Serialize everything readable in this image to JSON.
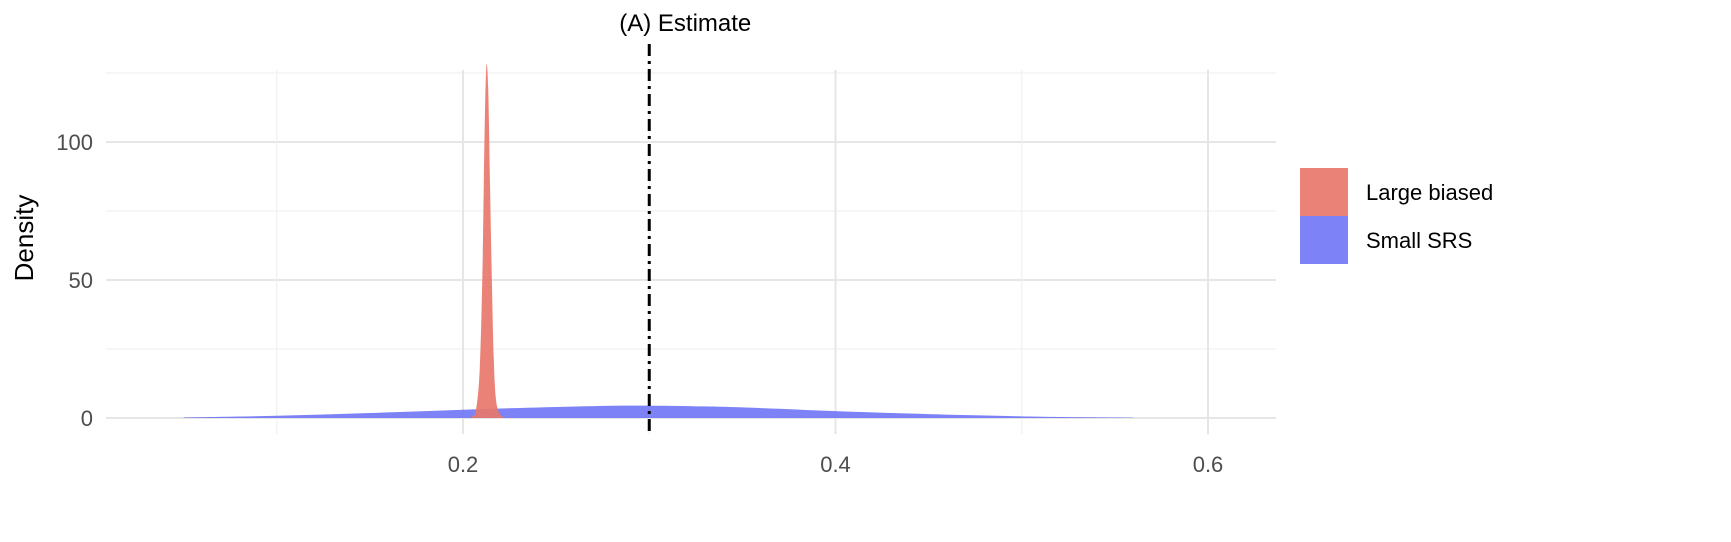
{
  "chart_data": {
    "type": "area",
    "title": "",
    "annotation": "(A) Estimate",
    "xlabel": "",
    "ylabel": "Density",
    "xlim": [
      0.03,
      0.63
    ],
    "ylim": [
      0,
      128
    ],
    "x_ticks": [
      0.2,
      0.4,
      0.6
    ],
    "x_tick_labels": [
      "0.2",
      "0.4",
      "0.6"
    ],
    "y_ticks": [
      0,
      50,
      100
    ],
    "y_tick_labels": [
      "0",
      "50",
      "100"
    ],
    "grid": true,
    "legend_position": "right",
    "reference_line": {
      "x": 0.3,
      "style": "dot-dash"
    },
    "series": [
      {
        "name": "Large biased",
        "color": "#E8776C",
        "x": [
          0.203,
          0.205,
          0.207,
          0.209,
          0.2105,
          0.2115,
          0.2125,
          0.2135,
          0.2145,
          0.2155,
          0.2165,
          0.2175,
          0.219,
          0.221,
          0.223
        ],
        "y": [
          0,
          0.5,
          3,
          18,
          55,
          100,
          127,
          120,
          85,
          50,
          22,
          8,
          2.5,
          0.5,
          0
        ]
      },
      {
        "name": "Small SRS",
        "color": "#6B72F5",
        "x": [
          0.05,
          0.1,
          0.15,
          0.2,
          0.25,
          0.29,
          0.33,
          0.36,
          0.4,
          0.45,
          0.5,
          0.53,
          0.56
        ],
        "y": [
          0.2,
          0.8,
          1.8,
          3.0,
          4.0,
          4.5,
          4.2,
          3.6,
          2.5,
          1.4,
          0.6,
          0.3,
          0.1
        ]
      }
    ]
  }
}
